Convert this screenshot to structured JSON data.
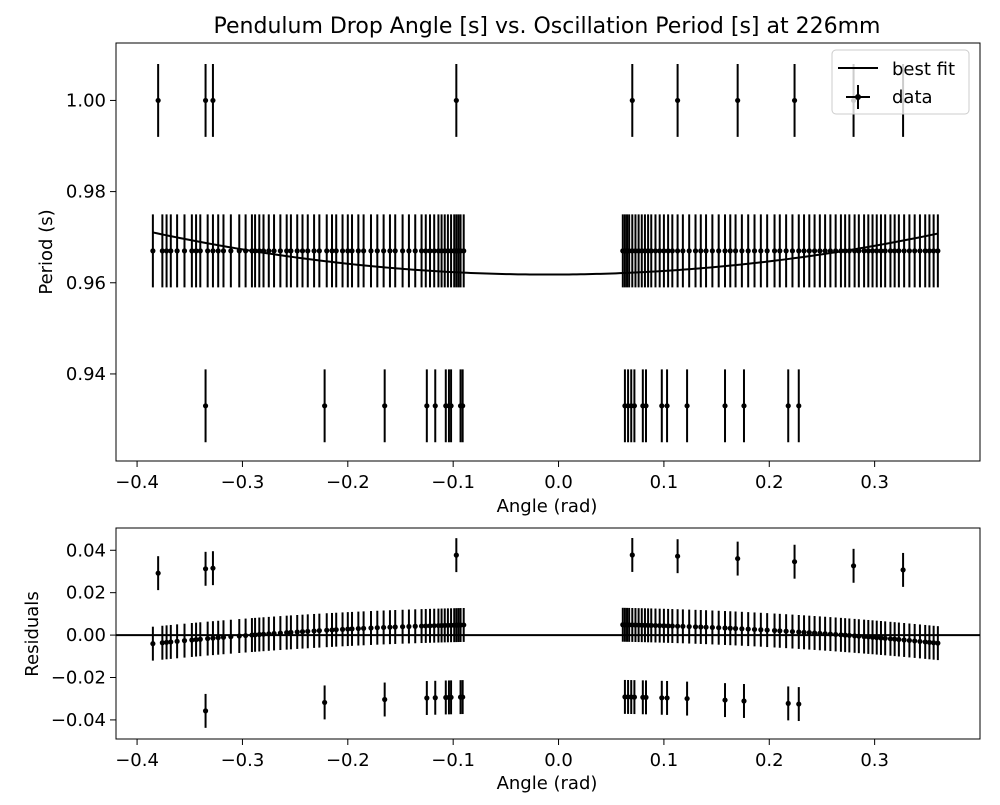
{
  "chart_data": [
    {
      "type": "scatter",
      "title": "Pendulum Drop Angle [s] vs. Oscillation Period [s] at 226mm",
      "xlabel": "Angle (rad)",
      "ylabel": "Period (s)",
      "xlim": [
        -0.42,
        0.4
      ],
      "ylim": [
        0.9209,
        1.0126
      ],
      "xticks": [
        -0.4,
        -0.3,
        -0.2,
        -0.1,
        0.0,
        0.1,
        0.2,
        0.3
      ],
      "xtick_labels": [
        "−0.4",
        "−0.3",
        "−0.2",
        "−0.1",
        "0.0",
        "0.1",
        "0.2",
        "0.3"
      ],
      "yticks": [
        0.94,
        0.96,
        0.98,
        1.0
      ],
      "ytick_labels": [
        "0.94",
        "0.96",
        "0.98",
        "1.00"
      ],
      "legend": {
        "placement": "top-right",
        "entries": [
          "best fit",
          "data"
        ]
      },
      "series": [
        {
          "name": "best fit",
          "kind": "line",
          "model": "quadratic",
          "x_range": [
            -0.385,
            0.36
          ],
          "vertex_x": -0.01,
          "vertex_y": 0.9618,
          "curvature": 0.0657
        },
        {
          "name": "data",
          "kind": "errorbar",
          "y_error": 0.008,
          "groups": [
            {
              "y": 1.0,
              "x": [
                -0.38,
                -0.335,
                -0.328,
                -0.097,
                0.07,
                0.113,
                0.17,
                0.224,
                0.28,
                0.327
              ]
            },
            {
              "y": 0.967,
              "x": [
                -0.385,
                -0.376,
                -0.372,
                -0.368,
                -0.362,
                -0.355,
                -0.348,
                -0.344,
                -0.34,
                -0.333,
                -0.328,
                -0.323,
                -0.318,
                -0.311,
                -0.303,
                -0.297,
                -0.291,
                -0.288,
                -0.284,
                -0.28,
                -0.275,
                -0.27,
                -0.264,
                -0.258,
                -0.254,
                -0.248,
                -0.243,
                -0.238,
                -0.232,
                -0.227,
                -0.22,
                -0.215,
                -0.211,
                -0.205,
                -0.2,
                -0.196,
                -0.19,
                -0.185,
                -0.178,
                -0.172,
                -0.166,
                -0.16,
                -0.155,
                -0.148,
                -0.142,
                -0.136,
                -0.13,
                -0.126,
                -0.122,
                -0.118,
                -0.114,
                -0.111,
                -0.108,
                -0.105,
                -0.102,
                -0.099,
                -0.097,
                -0.095,
                -0.093,
                -0.09,
                0.061,
                0.063,
                0.065,
                0.067,
                0.07,
                0.073,
                0.076,
                0.079,
                0.082,
                0.085,
                0.088,
                0.092,
                0.096,
                0.1,
                0.104,
                0.108,
                0.113,
                0.118,
                0.124,
                0.13,
                0.135,
                0.14,
                0.146,
                0.152,
                0.158,
                0.163,
                0.168,
                0.174,
                0.18,
                0.186,
                0.192,
                0.198,
                0.205,
                0.21,
                0.216,
                0.222,
                0.228,
                0.233,
                0.238,
                0.243,
                0.248,
                0.253,
                0.258,
                0.263,
                0.268,
                0.272,
                0.276,
                0.281,
                0.285,
                0.29,
                0.294,
                0.298,
                0.302,
                0.306,
                0.31,
                0.315,
                0.319,
                0.323,
                0.328,
                0.333,
                0.338,
                0.343,
                0.348,
                0.352,
                0.356,
                0.36
              ]
            },
            {
              "y": 0.933,
              "x": [
                -0.335,
                -0.222,
                -0.165,
                -0.125,
                -0.117,
                -0.107,
                -0.104,
                -0.102,
                -0.093,
                -0.091,
                0.063,
                0.066,
                0.069,
                0.072,
                0.08,
                0.083,
                0.098,
                0.103,
                0.122,
                0.158,
                0.176,
                0.218,
                0.228
              ]
            }
          ]
        }
      ]
    },
    {
      "type": "scatter",
      "title": "",
      "xlabel": "Angle (rad)",
      "ylabel": "Residuals",
      "xlim": [
        -0.42,
        0.4
      ],
      "ylim": [
        -0.049,
        0.0505
      ],
      "xticks": [
        -0.4,
        -0.3,
        -0.2,
        -0.1,
        0.0,
        0.1,
        0.2,
        0.3
      ],
      "xtick_labels": [
        "−0.4",
        "−0.3",
        "−0.2",
        "−0.1",
        "0.0",
        "0.1",
        "0.2",
        "0.3"
      ],
      "yticks": [
        -0.04,
        -0.02,
        0.0,
        0.02,
        0.04
      ],
      "ytick_labels": [
        "−0.04",
        "−0.02",
        "0.00",
        "0.02",
        "0.04"
      ],
      "reference_line_y": 0.0,
      "series": [
        {
          "name": "",
          "kind": "errorbar",
          "y_error": 0.008,
          "residual_of": "data"
        }
      ]
    }
  ]
}
